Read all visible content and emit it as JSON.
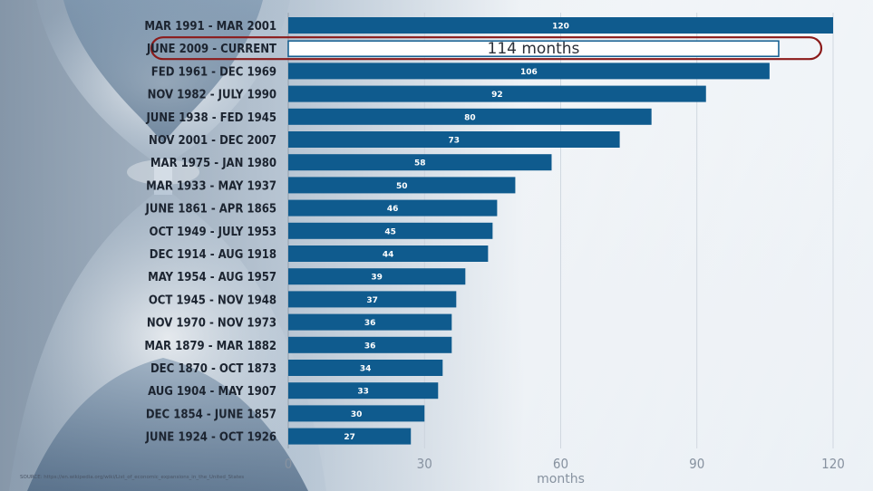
{
  "chart_data": {
    "type": "bar",
    "orientation": "horizontal",
    "categories": [
      "MAR 1991 - MAR 2001",
      "JUNE 2009 - CURRENT",
      "FED 1961 - DEC 1969",
      "NOV 1982 - JULY 1990",
      "JUNE 1938 - FED 1945",
      "NOV 2001 - DEC 2007",
      "MAR 1975 - JAN 1980",
      "MAR 1933 - MAY 1937",
      "JUNE 1861 - APR 1865",
      "OCT 1949 - JULY 1953",
      "DEC 1914 - AUG 1918",
      "MAY 1954 - AUG 1957",
      "OCT 1945 - NOV 1948",
      "NOV 1970 - NOV 1973",
      "MAR 1879 - MAR 1882",
      "DEC 1870 - OCT 1873",
      "AUG 1904 - MAY 1907",
      "DEC 1854 - JUNE 1857",
      "JUNE 1924 - OCT 1926"
    ],
    "values": [
      120,
      114,
      106,
      92,
      80,
      73,
      58,
      50,
      46,
      45,
      44,
      39,
      37,
      36,
      36,
      34,
      33,
      30,
      27
    ],
    "data_labels": [
      "120",
      "114 months",
      "106",
      "92",
      "80",
      "73",
      "58",
      "50",
      "46",
      "45",
      "44",
      "39",
      "37",
      "36",
      "36",
      "34",
      "33",
      "30",
      "27"
    ],
    "highlight_index": 1,
    "xlabel": "months",
    "xlim": [
      0,
      120
    ],
    "xticks": [
      "0",
      "30",
      "60",
      "90",
      "120"
    ],
    "xtick_values": [
      0,
      30,
      60,
      90,
      120
    ],
    "grid": true,
    "bar_color": "#0f5b8e",
    "highlight_outline_color": "#8b1a1a"
  },
  "source_note": "SOURCE: https://en.wikipedia.org/wiki/List_of_economic_expansions_in_the_United_States"
}
